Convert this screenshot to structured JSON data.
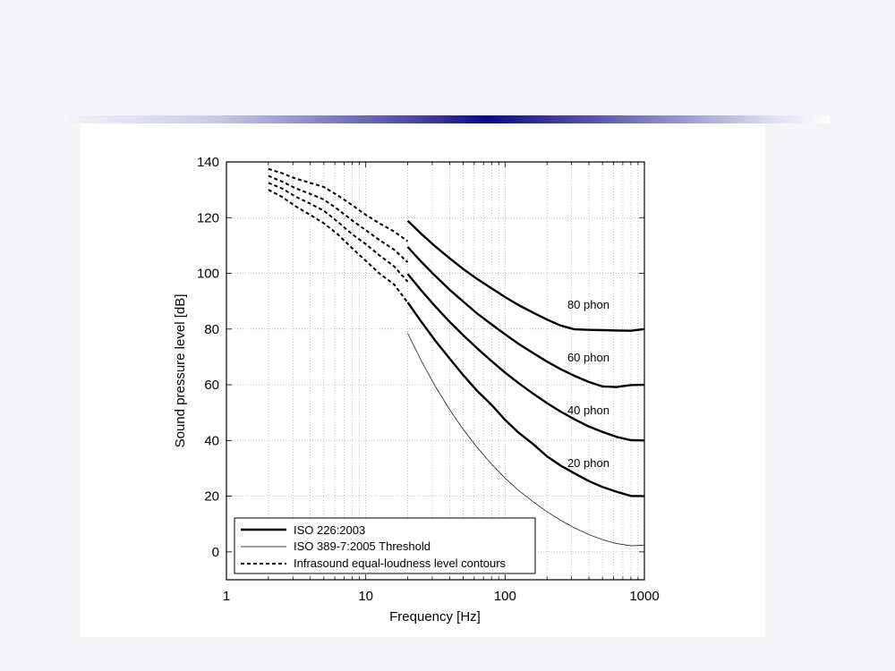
{
  "chart_data": {
    "type": "line",
    "xlabel": "Frequency [Hz]",
    "ylabel": "Sound pressure level [dB]",
    "xscale": "log",
    "xlim": [
      1,
      1000
    ],
    "ylim": [
      -10,
      140
    ],
    "xticks": [
      1,
      10,
      100,
      1000
    ],
    "xtick_labels": [
      "1",
      "10",
      "100",
      "1000"
    ],
    "yticks": [
      0,
      20,
      40,
      60,
      80,
      100,
      120,
      140
    ],
    "ytick_labels": [
      "0",
      "20",
      "40",
      "60",
      "80",
      "100",
      "120",
      "140"
    ],
    "grid": true,
    "legend_position": "bottom-left",
    "legend": [
      {
        "label": "ISO 226:2003",
        "style": "thick-solid"
      },
      {
        "label": "ISO 389-7:2005 Threshold",
        "style": "thin-solid"
      },
      {
        "label": "Infrasound equal-loudness level contours",
        "style": "dashed"
      }
    ],
    "series": [
      {
        "group": "ISO 226:2003",
        "label": "20 phon",
        "style": "thick-solid",
        "x": [
          20,
          25,
          31.5,
          40,
          50,
          63,
          80,
          100,
          125,
          160,
          200,
          250,
          315,
          400,
          500,
          630,
          800,
          1000
        ],
        "y": [
          89.6,
          82.7,
          75.9,
          69.4,
          63.5,
          57.8,
          52.8,
          47.4,
          42.8,
          38.6,
          34.3,
          31.0,
          28.2,
          25.4,
          23.3,
          21.6,
          20.1,
          20.0
        ]
      },
      {
        "group": "ISO 226:2003",
        "label": "40 phon",
        "style": "thick-solid",
        "x": [
          20,
          25,
          31.5,
          40,
          50,
          63,
          80,
          100,
          125,
          160,
          200,
          250,
          315,
          400,
          500,
          630,
          800,
          1000
        ],
        "y": [
          99.8,
          93.9,
          88.2,
          82.6,
          77.8,
          73.1,
          68.5,
          64.4,
          60.6,
          56.7,
          53.4,
          50.4,
          47.6,
          45.0,
          43.1,
          41.3,
          40.1,
          40.0
        ]
      },
      {
        "group": "ISO 226:2003",
        "label": "60 phon",
        "style": "thick-solid",
        "x": [
          20,
          25,
          31.5,
          40,
          50,
          63,
          80,
          100,
          125,
          160,
          200,
          250,
          315,
          400,
          500,
          630,
          800,
          1000
        ],
        "y": [
          109.5,
          104.2,
          99.1,
          94.1,
          89.9,
          85.6,
          81.7,
          78.1,
          74.7,
          71.3,
          68.3,
          65.6,
          63.2,
          61.0,
          59.4,
          59.2,
          59.9,
          60.0
        ]
      },
      {
        "group": "ISO 226:2003",
        "label": "80 phon",
        "style": "thick-solid",
        "x": [
          20,
          25,
          31.5,
          40,
          50,
          63,
          80,
          100,
          125,
          160,
          200,
          250,
          315,
          400,
          500,
          630,
          800,
          1000
        ],
        "y": [
          118.9,
          114.2,
          109.7,
          105.4,
          101.6,
          98.0,
          94.6,
          91.5,
          88.6,
          85.8,
          83.4,
          81.3,
          79.9,
          79.7,
          79.6,
          79.5,
          79.4,
          80.0
        ]
      },
      {
        "group": "ISO 389-7:2005 Threshold",
        "label": "",
        "style": "thin-solid",
        "x": [
          20,
          25,
          31.5,
          40,
          50,
          63,
          80,
          100,
          125,
          160,
          200,
          250,
          315,
          400,
          500,
          630,
          800,
          1000
        ],
        "y": [
          78.5,
          68.7,
          59.5,
          51.1,
          44.0,
          37.5,
          31.5,
          26.5,
          22.1,
          17.9,
          14.4,
          11.4,
          8.6,
          6.2,
          4.4,
          3.0,
          2.2,
          2.4
        ]
      },
      {
        "group": "Infrasound equal-loudness level contours",
        "label": "",
        "style": "dashed",
        "x": [
          2,
          2.5,
          3.15,
          4,
          5,
          6.3,
          8,
          10,
          12.5,
          16,
          20
        ],
        "y": [
          137.5,
          136.0,
          134.0,
          132.5,
          131.0,
          128.0,
          124.5,
          121.0,
          118.0,
          115.0,
          111.5
        ]
      },
      {
        "group": "Infrasound equal-loudness level contours",
        "label": "",
        "style": "dashed",
        "x": [
          2,
          2.5,
          3.15,
          4,
          5,
          6.3,
          8,
          10,
          12.5,
          16,
          20
        ],
        "y": [
          135.0,
          133.0,
          130.5,
          128.5,
          126.5,
          123.0,
          119.0,
          115.5,
          112.0,
          108.5,
          104.0
        ]
      },
      {
        "group": "Infrasound equal-loudness level contours",
        "label": "",
        "style": "dashed",
        "x": [
          2,
          2.5,
          3.15,
          4,
          5,
          6.3,
          8,
          10,
          12.5,
          16,
          20
        ],
        "y": [
          132.5,
          130.5,
          127.5,
          125.0,
          122.5,
          118.5,
          114.0,
          110.5,
          106.5,
          102.5,
          97.0
        ]
      },
      {
        "group": "Infrasound equal-loudness level contours",
        "label": "",
        "style": "dashed",
        "x": [
          2,
          2.5,
          3.15,
          4,
          5,
          6.3,
          8,
          10,
          12.5,
          16,
          20
        ],
        "y": [
          130.0,
          127.5,
          124.0,
          121.0,
          118.0,
          114.0,
          109.0,
          104.5,
          100.0,
          96.0,
          89.5
        ]
      }
    ],
    "annotations": [
      {
        "text": "80 phon",
        "x": 280,
        "y": 89
      },
      {
        "text": "60 phon",
        "x": 280,
        "y": 70
      },
      {
        "text": "40 phon",
        "x": 280,
        "y": 51
      },
      {
        "text": "20 phon",
        "x": 280,
        "y": 32
      }
    ]
  }
}
